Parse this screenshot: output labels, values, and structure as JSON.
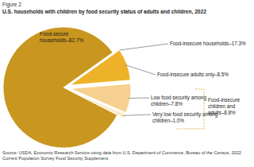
{
  "chart_data": {
    "type": "pie",
    "subtitle": "Figure 2",
    "title": "U.S. households with children by food security status of adults and children, 2022",
    "categories": [
      "Food-secure households–82.7%",
      "Food-insecure adults only–8.5%",
      "Low food security among children–7.8%",
      "Very low food security among children–1.0%"
    ],
    "values": [
      82.7,
      8.5,
      7.8,
      1.0
    ],
    "colors": [
      "#c9961f",
      "#eeb22a",
      "#f6d08e",
      "#fbe7c4"
    ],
    "annotations": [
      "Food-insecure households–17.3%",
      "Food-insecure children and adults–8.8%"
    ],
    "source": "Source: USDA, Economic Research Service using data from U.S. Department of Commerce, Bureau of the Census, 2022 Current Population Survey Food Security Supplement."
  }
}
